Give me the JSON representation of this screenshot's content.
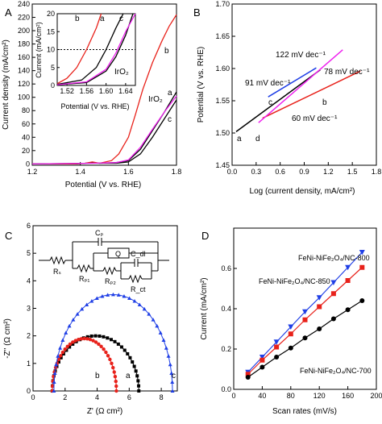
{
  "panels": {
    "A": "A",
    "B": "B",
    "C": "C",
    "D": "D"
  },
  "colors": {
    "black": "#000000",
    "red": "#e8211a",
    "magenta": "#ee22ee",
    "blue": "#1f3fe6"
  },
  "chart_data": [
    {
      "id": "A",
      "type": "line",
      "xlabel": "Potential (V vs. RHE)",
      "ylabel": "Current density (mA/cm²)",
      "xlim": [
        1.2,
        1.8
      ],
      "ylim": [
        -2,
        240
      ],
      "xticks": [
        1.2,
        1.4,
        1.6,
        1.8
      ],
      "yticks": [
        0,
        20,
        40,
        60,
        80,
        100,
        120,
        140,
        160,
        180,
        200,
        220,
        240
      ],
      "series": [
        {
          "name": "a",
          "color": "#000000",
          "x": [
            1.2,
            1.38,
            1.42,
            1.45,
            1.48,
            1.55,
            1.6,
            1.65,
            1.7,
            1.75,
            1.8
          ],
          "y": [
            0,
            0,
            1,
            2,
            1,
            2,
            5,
            22,
            50,
            78,
            108
          ]
        },
        {
          "name": "b",
          "color": "#e8211a",
          "x": [
            1.2,
            1.38,
            1.42,
            1.45,
            1.48,
            1.53,
            1.56,
            1.6,
            1.63,
            1.66,
            1.7,
            1.74,
            1.77,
            1.8
          ],
          "y": [
            0,
            0,
            1,
            3,
            1,
            5,
            15,
            40,
            75,
            112,
            152,
            185,
            207,
            224
          ]
        },
        {
          "name": "c",
          "color": "#000000",
          "x": [
            1.2,
            1.45,
            1.55,
            1.6,
            1.65,
            1.7,
            1.75,
            1.8
          ],
          "y": [
            0,
            1,
            1,
            3,
            15,
            40,
            68,
            96
          ]
        },
        {
          "name": "IrO2",
          "color": "#ee22ee",
          "x": [
            1.2,
            1.45,
            1.55,
            1.6,
            1.65,
            1.7,
            1.75,
            1.8
          ],
          "y": [
            0,
            1,
            2,
            6,
            25,
            52,
            78,
            102
          ]
        }
      ],
      "labels": [
        "a",
        "b",
        "c",
        "IrO₂"
      ],
      "inset": {
        "xlabel": "Potential (V vs. RHE)",
        "ylabel": "Current (mA/cm²)",
        "xlim": [
          1.5,
          1.66
        ],
        "ylim": [
          0,
          20
        ],
        "xticks": [
          1.52,
          1.56,
          1.6,
          1.64
        ],
        "yticks": [
          0,
          5,
          10,
          15,
          20
        ],
        "dashed_y": 10,
        "labels": [
          "a",
          "b",
          "c",
          "IrO₂"
        ]
      }
    },
    {
      "id": "B",
      "type": "line",
      "xlabel": "Log (current density, mA/cm²)",
      "ylabel": "Potential (V vs. RHE)",
      "xlim": [
        0.0,
        1.8
      ],
      "ylim": [
        1.45,
        1.7
      ],
      "xticks": [
        0.0,
        0.3,
        0.6,
        0.9,
        1.2,
        1.5,
        1.8
      ],
      "yticks": [
        1.45,
        1.5,
        1.55,
        1.6,
        1.65,
        1.7
      ],
      "series": [
        {
          "name": "a",
          "color": "#000000",
          "x": [
            0.05,
            1.1
          ],
          "y": [
            1.502,
            1.598
          ]
        },
        {
          "name": "b",
          "color": "#e8211a",
          "x": [
            0.38,
            1.6
          ],
          "y": [
            1.523,
            1.596
          ]
        },
        {
          "name": "c",
          "color": "#1f3fe6",
          "x": [
            0.45,
            1.05
          ],
          "y": [
            1.556,
            1.601
          ]
        },
        {
          "name": "d",
          "color": "#ee22ee",
          "x": [
            0.33,
            1.38
          ],
          "y": [
            1.516,
            1.629
          ]
        }
      ],
      "annotations": [
        "122 mV dec⁻¹",
        "91 mV dec⁻¹",
        "78 mV dec⁻¹",
        "60 mV dec⁻¹"
      ],
      "labels": [
        "a",
        "b",
        "c",
        "d"
      ]
    },
    {
      "id": "C",
      "type": "scatter",
      "xlabel": "Z' (Ω cm²)",
      "ylabel": "-Z'' (Ω cm²)",
      "xlim": [
        0,
        9
      ],
      "ylim": [
        0,
        6
      ],
      "xticks": [
        0,
        2,
        4,
        6,
        8
      ],
      "yticks": [
        0,
        1,
        2,
        3,
        4,
        5,
        6
      ],
      "series": [
        {
          "name": "a",
          "color": "#000000",
          "center": 3.9,
          "radius": 2.7,
          "peak": 2.0
        },
        {
          "name": "b",
          "color": "#e8211a",
          "center": 3.2,
          "radius": 2.0,
          "peak": 1.9
        },
        {
          "name": "c",
          "color": "#1f3fe6",
          "center": 5.0,
          "radius": 3.7,
          "peak": 3.5
        }
      ],
      "circuit_labels": [
        "Cₚ",
        "Q",
        "C_dl",
        "Rₛ",
        "Rₚ₁",
        "Rₚ₂",
        "R_ct"
      ],
      "labels": [
        "a",
        "b",
        "c"
      ]
    },
    {
      "id": "D",
      "type": "line",
      "xlabel": "Scan rates (mV/s)",
      "ylabel": "Current (mA/cm²)",
      "xlim": [
        0,
        200
      ],
      "ylim": [
        0,
        0.8
      ],
      "xticks": [
        0,
        40,
        80,
        120,
        160,
        200
      ],
      "yticks": [
        0.0,
        0.2,
        0.4,
        0.6
      ],
      "series": [
        {
          "name": "FeNi-NiFe₂O₄/NC-800",
          "color": "#1f3fe6",
          "marker": "triangle-down",
          "x": [
            20,
            40,
            60,
            80,
            100,
            120,
            140,
            160,
            180
          ],
          "y": [
            0.085,
            0.16,
            0.235,
            0.31,
            0.385,
            0.455,
            0.53,
            0.605,
            0.68
          ]
        },
        {
          "name": "FeNi-NiFe₂O₄/NC-850",
          "color": "#e8211a",
          "marker": "square",
          "x": [
            20,
            40,
            60,
            80,
            100,
            120,
            140,
            160,
            180
          ],
          "y": [
            0.075,
            0.145,
            0.21,
            0.275,
            0.345,
            0.41,
            0.475,
            0.54,
            0.605
          ]
        },
        {
          "name": "FeNi-NiFe₂O₄/NC-700",
          "color": "#000000",
          "marker": "circle",
          "x": [
            20,
            40,
            60,
            80,
            100,
            120,
            140,
            160,
            180
          ],
          "y": [
            0.06,
            0.11,
            0.16,
            0.205,
            0.255,
            0.3,
            0.35,
            0.395,
            0.44
          ]
        }
      ]
    }
  ]
}
